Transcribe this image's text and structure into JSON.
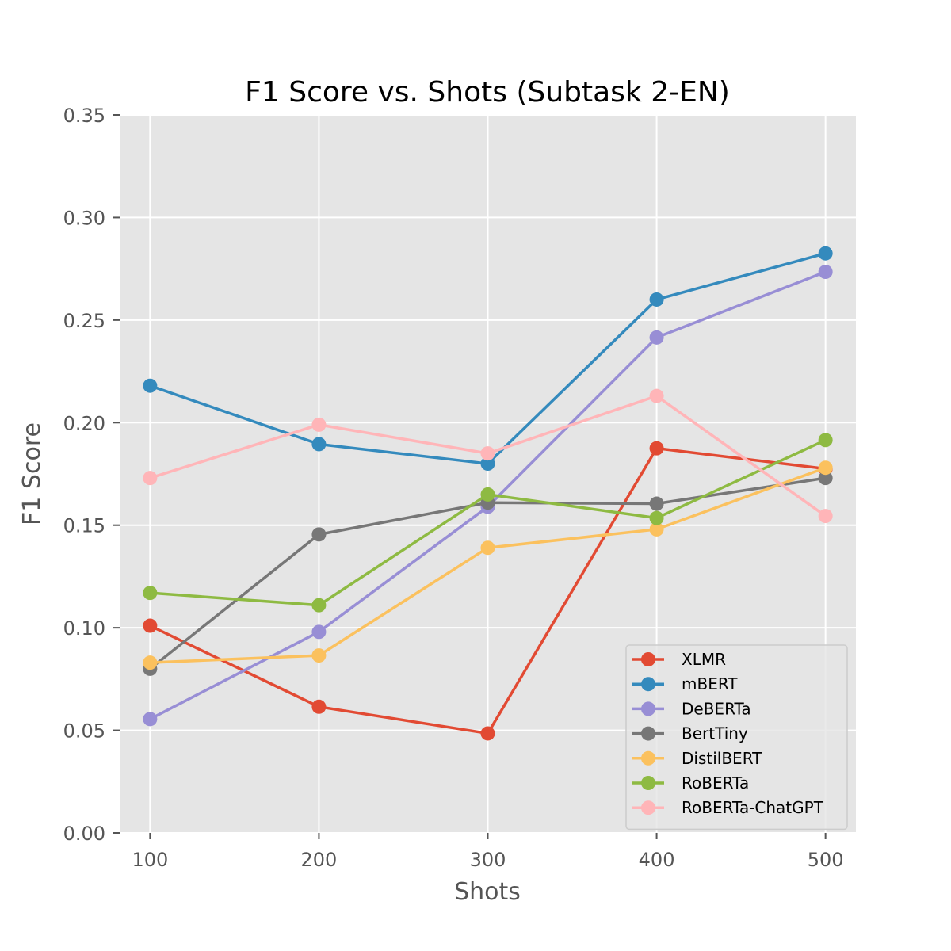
{
  "chart_data": {
    "type": "line",
    "title": "F1 Score vs. Shots (Subtask 2-EN)",
    "xlabel": "Shots",
    "ylabel": "F1 Score",
    "x": [
      100,
      200,
      300,
      400,
      500
    ],
    "x_tick_labels": [
      "100",
      "200",
      "300",
      "400",
      "500"
    ],
    "xlim": [
      82,
      518
    ],
    "ylim": [
      0,
      0.35
    ],
    "y_ticks": [
      0.0,
      0.05,
      0.1,
      0.15,
      0.2,
      0.25,
      0.3,
      0.35
    ],
    "y_tick_labels": [
      "0.00",
      "0.05",
      "0.10",
      "0.15",
      "0.20",
      "0.25",
      "0.30",
      "0.35"
    ],
    "grid": true,
    "legend_position": "lower-right",
    "series": [
      {
        "name": "XLMR",
        "color": "#E24A33",
        "values": [
          0.101,
          0.0615,
          0.0485,
          0.1875,
          0.1775
        ]
      },
      {
        "name": "mBERT",
        "color": "#348ABD",
        "values": [
          0.218,
          0.1895,
          0.18,
          0.26,
          0.2825
        ]
      },
      {
        "name": "DeBERTa",
        "color": "#988ED5",
        "values": [
          0.0555,
          0.098,
          0.159,
          0.2415,
          0.2735
        ]
      },
      {
        "name": "BertTiny",
        "color": "#777777",
        "values": [
          0.08,
          0.1455,
          0.161,
          0.1605,
          0.173
        ]
      },
      {
        "name": "DistilBERT",
        "color": "#FBC15E",
        "values": [
          0.083,
          0.0865,
          0.139,
          0.148,
          0.178
        ]
      },
      {
        "name": "RoBERTa",
        "color": "#8EBA42",
        "values": [
          0.117,
          0.111,
          0.165,
          0.1535,
          0.1915
        ]
      },
      {
        "name": "RoBERTa-ChatGPT",
        "color": "#FFB5B8",
        "values": [
          0.173,
          0.199,
          0.185,
          0.213,
          0.1545
        ]
      }
    ]
  }
}
